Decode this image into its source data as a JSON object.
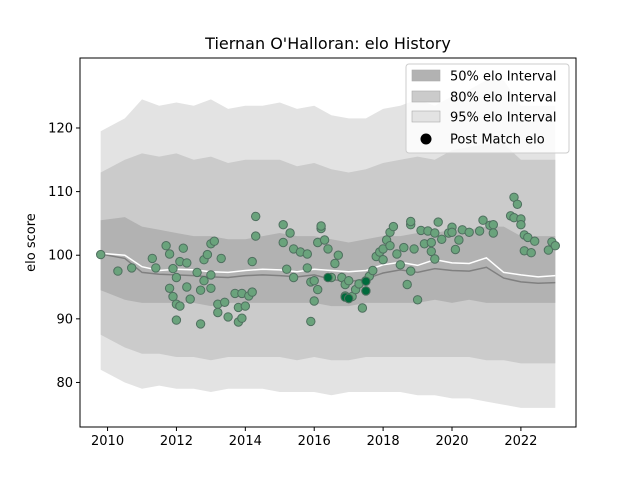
{
  "chart_data": {
    "type": "scatter",
    "title": "Tiernan O'Halloran: elo History",
    "xlabel": "",
    "ylabel": "elo score",
    "xlim": [
      2009.2,
      2023.6
    ],
    "ylim": [
      73,
      131
    ],
    "xticks": [
      2010,
      2012,
      2014,
      2016,
      2018,
      2020,
      2022
    ],
    "yticks": [
      80,
      90,
      100,
      110,
      120
    ],
    "grid": false,
    "legend_position": "top-right",
    "colors": {
      "band95": "#e3e3e3",
      "band80": "#cbcbcb",
      "band50": "#b2b2b2",
      "median_line": "#ffffff",
      "mean_line": "#808080",
      "point_fill": "#6aa37c",
      "point_edge": "#4f6f5f",
      "point_dark": "#006b3c"
    },
    "series": [
      {
        "name": "50% elo Interval",
        "kind": "band"
      },
      {
        "name": "80% elo Interval",
        "kind": "band"
      },
      {
        "name": "95% elo Interval",
        "kind": "band"
      },
      {
        "name": "Post Match elo",
        "kind": "points"
      }
    ],
    "bands": {
      "x": [
        2009.8,
        2010.5,
        2011.0,
        2011.5,
        2012.0,
        2012.5,
        2013.0,
        2013.5,
        2014.0,
        2014.5,
        2015.0,
        2015.5,
        2016.0,
        2016.5,
        2017.0,
        2017.5,
        2018.0,
        2018.5,
        2019.0,
        2019.5,
        2020.0,
        2020.5,
        2021.0,
        2021.5,
        2022.0,
        2022.5,
        2023.0
      ],
      "p95_upper": [
        119.5,
        121.5,
        124.5,
        123.5,
        124.0,
        123.5,
        124.5,
        123.0,
        123.5,
        123.5,
        124.0,
        123.0,
        123.5,
        122.0,
        121.5,
        121.5,
        123.0,
        123.5,
        124.5,
        123.5,
        125.0,
        126.0,
        127.5,
        127.5,
        123.5,
        123.5,
        123.5
      ],
      "p80_upper": [
        113.0,
        115.0,
        116.0,
        115.5,
        116.0,
        115.0,
        115.5,
        114.5,
        115.0,
        115.0,
        115.0,
        114.0,
        114.5,
        113.5,
        113.0,
        113.5,
        114.5,
        115.0,
        115.5,
        115.0,
        116.5,
        117.0,
        117.5,
        117.5,
        115.0,
        115.0,
        115.0
      ],
      "p50_upper": [
        105.5,
        106.0,
        104.5,
        104.0,
        103.5,
        103.0,
        103.0,
        102.5,
        102.5,
        103.0,
        103.5,
        103.0,
        103.0,
        102.5,
        102.0,
        102.5,
        103.0,
        103.0,
        103.5,
        103.5,
        104.0,
        104.0,
        104.5,
        104.5,
        103.0,
        103.0,
        103.0
      ],
      "p50_lower": [
        94.5,
        93.0,
        92.5,
        92.5,
        92.5,
        92.5,
        92.0,
        92.5,
        92.5,
        92.5,
        92.5,
        92.5,
        92.5,
        92.0,
        92.0,
        92.5,
        92.5,
        92.5,
        92.5,
        93.0,
        92.5,
        93.0,
        92.5,
        92.5,
        92.5,
        92.5,
        92.5
      ],
      "p80_lower": [
        87.5,
        85.5,
        84.5,
        84.5,
        84.0,
        84.0,
        83.5,
        84.0,
        84.0,
        84.0,
        84.0,
        83.5,
        84.0,
        83.5,
        83.5,
        84.0,
        84.0,
        84.0,
        84.0,
        84.0,
        84.0,
        84.0,
        83.5,
        83.5,
        83.0,
        83.0,
        83.0
      ],
      "p95_lower": [
        82.0,
        80.0,
        79.0,
        79.5,
        79.0,
        79.0,
        78.5,
        79.0,
        79.0,
        79.0,
        78.5,
        78.5,
        78.5,
        78.0,
        78.5,
        78.5,
        78.5,
        78.5,
        78.0,
        78.0,
        77.5,
        77.5,
        77.0,
        76.5,
        76.0,
        76.0,
        76.0
      ],
      "median": [
        100.3,
        100.0,
        98.2,
        97.6,
        97.8,
        97.7,
        97.4,
        97.3,
        97.6,
        97.8,
        97.7,
        97.4,
        97.8,
        97.6,
        97.4,
        97.6,
        98.5,
        98.9,
        98.4,
        99.3,
        98.8,
        98.7,
        99.6,
        97.3,
        96.9,
        96.6,
        96.8
      ],
      "mean": [
        100.2,
        99.5,
        97.3,
        97.0,
        96.9,
        96.8,
        96.6,
        96.5,
        96.8,
        96.9,
        96.8,
        96.6,
        96.9,
        96.2,
        95.8,
        96.3,
        97.2,
        97.7,
        97.3,
        97.9,
        97.6,
        97.5,
        98.1,
        96.4,
        95.8,
        95.6,
        95.7
      ]
    },
    "points": [
      [
        2009.8,
        100.1
      ],
      [
        2010.3,
        97.5
      ],
      [
        2010.7,
        98.0
      ],
      [
        2011.3,
        99.5
      ],
      [
        2011.4,
        98.0
      ],
      [
        2011.7,
        101.5
      ],
      [
        2011.8,
        94.8
      ],
      [
        2011.8,
        100.2
      ],
      [
        2011.9,
        93.5
      ],
      [
        2011.9,
        97.9
      ],
      [
        2012.0,
        89.8
      ],
      [
        2012.0,
        92.3
      ],
      [
        2012.0,
        96.5
      ],
      [
        2012.1,
        99.0
      ],
      [
        2012.1,
        92.0
      ],
      [
        2012.2,
        101.1
      ],
      [
        2012.3,
        95.0
      ],
      [
        2012.3,
        98.8
      ],
      [
        2012.4,
        93.1
      ],
      [
        2012.6,
        97.3
      ],
      [
        2012.7,
        89.2
      ],
      [
        2012.7,
        94.5
      ],
      [
        2012.8,
        99.3
      ],
      [
        2012.8,
        96.0
      ],
      [
        2012.9,
        100.1
      ],
      [
        2013.0,
        101.8
      ],
      [
        2013.0,
        94.8
      ],
      [
        2013.0,
        96.9
      ],
      [
        2013.1,
        102.2
      ],
      [
        2013.2,
        92.3
      ],
      [
        2013.2,
        91.0
      ],
      [
        2013.3,
        99.5
      ],
      [
        2013.4,
        92.6
      ],
      [
        2013.5,
        90.3
      ],
      [
        2013.7,
        94.0
      ],
      [
        2013.8,
        91.8
      ],
      [
        2013.8,
        89.5
      ],
      [
        2013.9,
        90.1
      ],
      [
        2013.9,
        94.0
      ],
      [
        2014.0,
        92.0
      ],
      [
        2014.1,
        93.6
      ],
      [
        2014.2,
        94.2
      ],
      [
        2014.3,
        103.0
      ],
      [
        2014.3,
        106.1
      ],
      [
        2014.2,
        99.0
      ],
      [
        2015.1,
        104.8
      ],
      [
        2015.1,
        102.0
      ],
      [
        2015.2,
        97.8
      ],
      [
        2015.3,
        103.5
      ],
      [
        2015.4,
        101.0
      ],
      [
        2015.4,
        96.5
      ],
      [
        2015.6,
        100.5
      ],
      [
        2015.8,
        98.0
      ],
      [
        2015.8,
        100.2
      ],
      [
        2015.9,
        95.8
      ],
      [
        2015.9,
        89.6
      ],
      [
        2016.0,
        92.8
      ],
      [
        2016.0,
        96.0
      ],
      [
        2016.1,
        94.6
      ],
      [
        2016.1,
        102.0
      ],
      [
        2016.2,
        104.2
      ],
      [
        2016.2,
        104.6
      ],
      [
        2016.3,
        102.4
      ],
      [
        2016.4,
        101.0
      ],
      [
        2016.5,
        96.5
      ],
      [
        2016.6,
        98.7
      ],
      [
        2016.7,
        100.0
      ],
      [
        2016.8,
        96.5
      ],
      [
        2016.9,
        95.4
      ],
      [
        2016.9,
        93.6
      ],
      [
        2017.0,
        93.2
      ],
      [
        2017.0,
        96.0
      ],
      [
        2017.1,
        93.5
      ],
      [
        2017.2,
        94.6
      ],
      [
        2017.3,
        95.5
      ],
      [
        2017.4,
        91.7
      ],
      [
        2017.5,
        94.4
      ],
      [
        2017.5,
        96.0
      ],
      [
        2017.6,
        96.7
      ],
      [
        2017.7,
        97.6
      ],
      [
        2017.8,
        99.8
      ],
      [
        2017.9,
        100.5
      ],
      [
        2018.0,
        99.3
      ],
      [
        2018.0,
        101.0
      ],
      [
        2018.1,
        102.4
      ],
      [
        2018.2,
        103.6
      ],
      [
        2018.2,
        101.5
      ],
      [
        2018.3,
        104.5
      ],
      [
        2018.4,
        100.2
      ],
      [
        2018.5,
        98.5
      ],
      [
        2018.6,
        101.2
      ],
      [
        2018.7,
        95.4
      ],
      [
        2018.8,
        97.5
      ],
      [
        2018.8,
        104.8
      ],
      [
        2018.8,
        105.3
      ],
      [
        2018.9,
        101.0
      ],
      [
        2019.0,
        93.0
      ],
      [
        2019.1,
        103.9
      ],
      [
        2019.2,
        101.8
      ],
      [
        2019.3,
        103.8
      ],
      [
        2019.4,
        100.6
      ],
      [
        2019.4,
        102.0
      ],
      [
        2019.5,
        103.5
      ],
      [
        2019.5,
        99.4
      ],
      [
        2019.6,
        105.2
      ],
      [
        2019.7,
        102.5
      ],
      [
        2019.9,
        103.5
      ],
      [
        2020.0,
        104.4
      ],
      [
        2020.0,
        103.6
      ],
      [
        2020.1,
        100.9
      ],
      [
        2020.2,
        102.4
      ],
      [
        2020.3,
        104.0
      ],
      [
        2020.5,
        103.6
      ],
      [
        2020.8,
        103.8
      ],
      [
        2020.9,
        105.5
      ],
      [
        2021.1,
        104.7
      ],
      [
        2021.2,
        104.8
      ],
      [
        2021.2,
        103.5
      ],
      [
        2021.7,
        106.2
      ],
      [
        2021.8,
        109.1
      ],
      [
        2021.9,
        108.0
      ],
      [
        2021.8,
        105.9
      ],
      [
        2022.0,
        105.7
      ],
      [
        2022.0,
        104.8
      ],
      [
        2022.1,
        103.2
      ],
      [
        2022.1,
        100.7
      ],
      [
        2022.2,
        102.8
      ],
      [
        2022.3,
        100.4
      ],
      [
        2022.4,
        102.2
      ],
      [
        2022.8,
        100.8
      ],
      [
        2022.9,
        102.1
      ],
      [
        2023.0,
        101.5
      ]
    ],
    "dark_points": [
      [
        2016.4,
        96.5
      ],
      [
        2016.9,
        93.4
      ],
      [
        2017.0,
        93.2
      ],
      [
        2017.5,
        94.4
      ],
      [
        2017.5,
        95.9
      ]
    ]
  }
}
